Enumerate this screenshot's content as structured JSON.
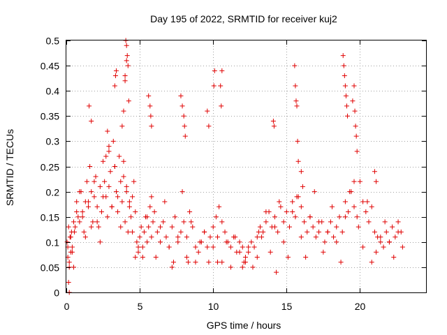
{
  "chart_data": {
    "type": "scatter",
    "title": "Day 195 of 2022, SRMTID for receiver kuj2",
    "xlabel": "GPS time / hours",
    "ylabel": "SRMTID / TECUs",
    "xlim": [
      0,
      24.5
    ],
    "ylim": [
      0,
      0.5
    ],
    "xticks": [
      0,
      5,
      10,
      15,
      20
    ],
    "xtick_labels": [
      "0",
      "5",
      "10",
      "15",
      "20"
    ],
    "yticks": [
      0,
      0.05,
      0.1,
      0.15,
      0.2,
      0.25,
      0.3,
      0.35,
      0.4,
      0.45,
      0.5
    ],
    "ytick_labels": [
      "0",
      "0.05",
      "0.1",
      "0.15",
      "0.2",
      "0.25",
      "0.3",
      "0.35",
      "0.4",
      "0.45",
      "0.5"
    ],
    "grid": true,
    "marker": "+",
    "color": "#e00000",
    "series": [
      {
        "name": "kuj2",
        "x": [
          0.05,
          0.1,
          0.15,
          0.2,
          0.25,
          0.3,
          0.35,
          0.4,
          0.5,
          0.6,
          0.7,
          0.8,
          0.9,
          1.0,
          1.1,
          1.2,
          1.3,
          1.4,
          1.5,
          1.6,
          1.7,
          1.8,
          1.9,
          2.0,
          2.1,
          2.2,
          2.3,
          2.4,
          2.5,
          2.6,
          2.7,
          2.8,
          2.9,
          3.0,
          3.1,
          3.2,
          3.3,
          3.4,
          3.5,
          3.6,
          3.7,
          3.8,
          3.9,
          4.0,
          4.1,
          4.2,
          4.3,
          4.4,
          4.5,
          4.6,
          4.7,
          4.8,
          4.9,
          5.0,
          5.1,
          5.2,
          5.3,
          5.4,
          5.5,
          5.6,
          5.7,
          5.8,
          5.9,
          6.0,
          6.2,
          6.4,
          6.6,
          6.8,
          7.0,
          7.2,
          7.4,
          7.6,
          7.8,
          8.0,
          8.2,
          8.4,
          8.6,
          8.8,
          9.0,
          9.2,
          9.4,
          9.6,
          9.8,
          10.0,
          10.2,
          10.4,
          10.6,
          10.8,
          11.0,
          11.2,
          11.4,
          11.6,
          11.8,
          12.0,
          12.2,
          12.4,
          12.6,
          12.8,
          13.0,
          13.2,
          13.4,
          13.6,
          13.8,
          14.0,
          14.2,
          14.4,
          14.6,
          14.8,
          15.0,
          15.2,
          15.4,
          15.6,
          15.8,
          16.0,
          16.2,
          16.4,
          16.6,
          16.8,
          17.0,
          17.2,
          17.4,
          17.6,
          17.8,
          18.0,
          18.2,
          18.4,
          18.6,
          18.8,
          19.0,
          19.2,
          19.4,
          19.6,
          19.8,
          20.0,
          20.2,
          20.4,
          20.6,
          20.8,
          21.0,
          21.2,
          21.4,
          21.6,
          21.8,
          22.0,
          22.2,
          22.4,
          22.6,
          22.8,
          0.1,
          0.2,
          0.3,
          0.4,
          0.55,
          0.7,
          0.9,
          1.1,
          1.3,
          1.5,
          1.7,
          1.9,
          2.1,
          2.3,
          2.5,
          2.7,
          2.9,
          3.1,
          3.3,
          3.5,
          3.7,
          3.9,
          4.1,
          4.3,
          4.5,
          4.7,
          4.9,
          5.2,
          5.5,
          5.8,
          6.1,
          6.4,
          6.7,
          7.0,
          7.3,
          7.6,
          7.9,
          8.2,
          8.5,
          8.8,
          9.1,
          9.4,
          9.7,
          10.0,
          10.3,
          10.6,
          10.9,
          11.2,
          11.5,
          11.8,
          12.1,
          12.4,
          12.7,
          13.0,
          13.3,
          13.6,
          13.9,
          14.2,
          14.5,
          14.8,
          15.1,
          15.4,
          15.7,
          16.0,
          16.3,
          16.6,
          16.9,
          17.2,
          17.5,
          17.8,
          18.1,
          18.4,
          18.7,
          19.0,
          19.3,
          19.6,
          19.9,
          20.2,
          20.5,
          20.8,
          21.1,
          21.4,
          21.7,
          22.0,
          22.3,
          22.6,
          22.9,
          1.55,
          1.7,
          2.8,
          2.9,
          3.3,
          3.35,
          3.4,
          3.8,
          3.9,
          4.0,
          4.05,
          4.1,
          4.15,
          4.2,
          4.25,
          5.6,
          5.7,
          5.75,
          5.8,
          7.8,
          7.9,
          8.0,
          8.05,
          8.1,
          9.6,
          9.7,
          10.05,
          10.1,
          10.5,
          10.55,
          10.6,
          14.1,
          14.15,
          15.55,
          15.6,
          15.65,
          15.7,
          15.75,
          15.8,
          18.85,
          18.9,
          18.95,
          19.0,
          19.05,
          19.1,
          19.15,
          19.5,
          19.6,
          19.65,
          19.7,
          19.75,
          19.8,
          0.15,
          0.2,
          0.5,
          4.0,
          4.1,
          16.0,
          16.1,
          21.0,
          21.1,
          13.1,
          14.3,
          7.2,
          8.3,
          10.3,
          12.0,
          12.2
        ],
        "y": [
          0.1,
          0.09,
          0.13,
          0.06,
          0.11,
          0.08,
          0.12,
          0.09,
          0.14,
          0.13,
          0.18,
          0.15,
          0.14,
          0.2,
          0.16,
          0.12,
          0.18,
          0.22,
          0.17,
          0.25,
          0.2,
          0.14,
          0.19,
          0.23,
          0.17,
          0.13,
          0.21,
          0.16,
          0.26,
          0.22,
          0.19,
          0.15,
          0.28,
          0.24,
          0.17,
          0.3,
          0.25,
          0.2,
          0.16,
          0.27,
          0.22,
          0.18,
          0.23,
          0.14,
          0.2,
          0.12,
          0.17,
          0.15,
          0.19,
          0.22,
          0.16,
          0.1,
          0.08,
          0.11,
          0.13,
          0.09,
          0.12,
          0.15,
          0.1,
          0.13,
          0.17,
          0.11,
          0.14,
          0.16,
          0.12,
          0.1,
          0.14,
          0.11,
          0.09,
          0.13,
          0.15,
          0.1,
          0.12,
          0.14,
          0.11,
          0.16,
          0.13,
          0.09,
          0.08,
          0.1,
          0.12,
          0.09,
          0.11,
          0.13,
          0.15,
          0.17,
          0.14,
          0.12,
          0.1,
          0.09,
          0.11,
          0.08,
          0.1,
          0.09,
          0.07,
          0.08,
          0.1,
          0.09,
          0.11,
          0.13,
          0.12,
          0.14,
          0.16,
          0.13,
          0.15,
          0.12,
          0.17,
          0.14,
          0.16,
          0.13,
          0.18,
          0.15,
          0.19,
          0.17,
          0.14,
          0.12,
          0.15,
          0.13,
          0.11,
          0.12,
          0.14,
          0.1,
          0.12,
          0.14,
          0.11,
          0.13,
          0.15,
          0.12,
          0.18,
          0.16,
          0.2,
          0.17,
          0.15,
          0.22,
          0.18,
          0.16,
          0.14,
          0.17,
          0.12,
          0.11,
          0.1,
          0.09,
          0.12,
          0.1,
          0.13,
          0.11,
          0.14,
          0.12,
          0.07,
          0.05,
          0.11,
          0.08,
          0.12,
          0.16,
          0.2,
          0.15,
          0.11,
          0.18,
          0.13,
          0.22,
          0.14,
          0.1,
          0.19,
          0.27,
          0.21,
          0.17,
          0.25,
          0.19,
          0.13,
          0.26,
          0.21,
          0.18,
          0.12,
          0.07,
          0.09,
          0.07,
          0.15,
          0.19,
          0.07,
          0.13,
          0.18,
          0.09,
          0.06,
          0.11,
          0.2,
          0.07,
          0.14,
          0.06,
          0.1,
          0.12,
          0.06,
          0.09,
          0.11,
          0.06,
          0.1,
          0.05,
          0.11,
          0.08,
          0.06,
          0.09,
          0.05,
          0.07,
          0.11,
          0.16,
          0.08,
          0.13,
          0.18,
          0.1,
          0.07,
          0.16,
          0.19,
          0.11,
          0.07,
          0.15,
          0.2,
          0.14,
          0.08,
          0.12,
          0.17,
          0.1,
          0.06,
          0.15,
          0.2,
          0.22,
          0.13,
          0.09,
          0.18,
          0.06,
          0.08,
          0.11,
          0.14,
          0.1,
          0.07,
          0.12,
          0.09,
          0.37,
          0.34,
          0.32,
          0.29,
          0.41,
          0.43,
          0.44,
          0.33,
          0.36,
          0.42,
          0.5,
          0.49,
          0.47,
          0.45,
          0.38,
          0.39,
          0.37,
          0.35,
          0.33,
          0.39,
          0.37,
          0.35,
          0.33,
          0.31,
          0.36,
          0.33,
          0.41,
          0.44,
          0.41,
          0.37,
          0.44,
          0.34,
          0.33,
          0.45,
          0.41,
          0.38,
          0.37,
          0.3,
          0.26,
          0.47,
          0.45,
          0.43,
          0.41,
          0.39,
          0.37,
          0.35,
          0.38,
          0.41,
          0.36,
          0.33,
          0.31,
          0.28,
          0.02,
          0.0,
          0.05,
          0.43,
          0.46,
          0.24,
          0.21,
          0.24,
          0.22,
          0.12,
          0.04,
          0.05,
          0.06,
          0.06,
          0.05,
          0.06
        ]
      }
    ]
  }
}
